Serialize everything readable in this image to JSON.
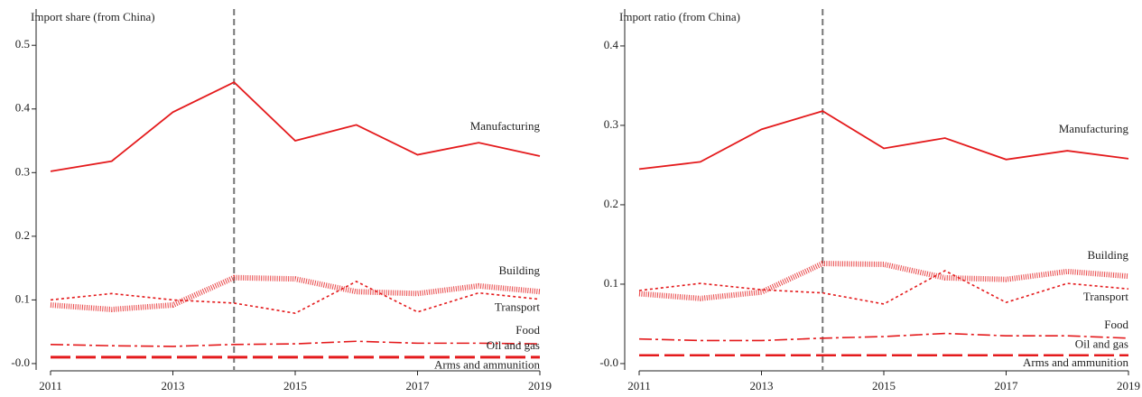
{
  "chart_data": [
    {
      "type": "line",
      "title": "Import share (from China)",
      "x": [
        2011,
        2012,
        2013,
        2014,
        2015,
        2016,
        2017,
        2018,
        2019
      ],
      "xlim": [
        2011,
        2019
      ],
      "xticks": [
        2011,
        2013,
        2015,
        2017,
        2019
      ],
      "ylim": [
        -0.01,
        0.557
      ],
      "yticks": [
        {
          "value": 0,
          "label": "-0.0"
        },
        0.1,
        0.2,
        0.3,
        0.4,
        0.5
      ],
      "vline": 2014,
      "series": [
        {
          "name": "Manufacturing",
          "color": "#e41a1c",
          "dash": "solid",
          "values": [
            0.302,
            0.318,
            0.395,
            0.442,
            0.35,
            0.375,
            0.328,
            0.347,
            0.326
          ]
        },
        {
          "name": "Building",
          "color": "#e41a1c",
          "dash": "hatched",
          "values": [
            0.092,
            0.085,
            0.092,
            0.135,
            0.133,
            0.113,
            0.11,
            0.122,
            0.113
          ]
        },
        {
          "name": "Transport",
          "color": "#e41a1c",
          "dash": "dotted",
          "values": [
            0.1,
            0.11,
            0.1,
            0.095,
            0.079,
            0.129,
            0.081,
            0.111,
            0.101
          ]
        },
        {
          "name": "Food",
          "color": "#e41a1c",
          "dash": "dashdot",
          "values": [
            0.03,
            0.028,
            0.027,
            0.03,
            0.031,
            0.035,
            0.032,
            0.032,
            0.031
          ]
        },
        {
          "name": "Oil and gas",
          "color": "#e41a1c",
          "dash": "longdash",
          "values": [
            0.011,
            0.011,
            0.011,
            0.011,
            0.011,
            0.011,
            0.011,
            0.011,
            0.011
          ]
        },
        {
          "name": "Arms and ammunition",
          "color": "#e41a1c",
          "dash": "longdash",
          "values": [
            0.009,
            0.009,
            0.009,
            0.009,
            0.009,
            0.009,
            0.009,
            0.009,
            0.009
          ]
        }
      ]
    },
    {
      "type": "line",
      "title": "Import ratio (from China)",
      "x": [
        2011,
        2012,
        2013,
        2014,
        2015,
        2016,
        2017,
        2018,
        2019
      ],
      "xlim": [
        2011,
        2019
      ],
      "xticks": [
        2011,
        2013,
        2015,
        2017,
        2019
      ],
      "ylim": [
        -0.008,
        0.4465
      ],
      "yticks": [
        {
          "value": 0,
          "label": "-0.0"
        },
        0.1,
        0.2,
        0.3,
        0.4
      ],
      "vline": 2014,
      "series": [
        {
          "name": "Manufacturing",
          "color": "#e41a1c",
          "dash": "solid",
          "values": [
            0.245,
            0.254,
            0.295,
            0.318,
            0.271,
            0.284,
            0.257,
            0.268,
            0.258
          ]
        },
        {
          "name": "Building",
          "color": "#e41a1c",
          "dash": "hatched",
          "values": [
            0.088,
            0.082,
            0.09,
            0.126,
            0.125,
            0.108,
            0.106,
            0.116,
            0.11
          ]
        },
        {
          "name": "Transport",
          "color": "#e41a1c",
          "dash": "dotted",
          "values": [
            0.092,
            0.101,
            0.093,
            0.089,
            0.075,
            0.117,
            0.077,
            0.101,
            0.094
          ]
        },
        {
          "name": "Food",
          "color": "#e41a1c",
          "dash": "dashdot",
          "values": [
            0.031,
            0.029,
            0.029,
            0.032,
            0.034,
            0.038,
            0.035,
            0.035,
            0.032
          ]
        },
        {
          "name": "Oil and gas",
          "color": "#e41a1c",
          "dash": "longdash",
          "values": [
            0.011,
            0.011,
            0.011,
            0.011,
            0.011,
            0.011,
            0.011,
            0.011,
            0.011
          ]
        },
        {
          "name": "Arms and ammunition",
          "color": "#e41a1c",
          "dash": "longdash",
          "values": [
            0.01,
            0.01,
            0.01,
            0.01,
            0.01,
            0.01,
            0.01,
            0.01,
            0.01
          ]
        }
      ]
    }
  ]
}
